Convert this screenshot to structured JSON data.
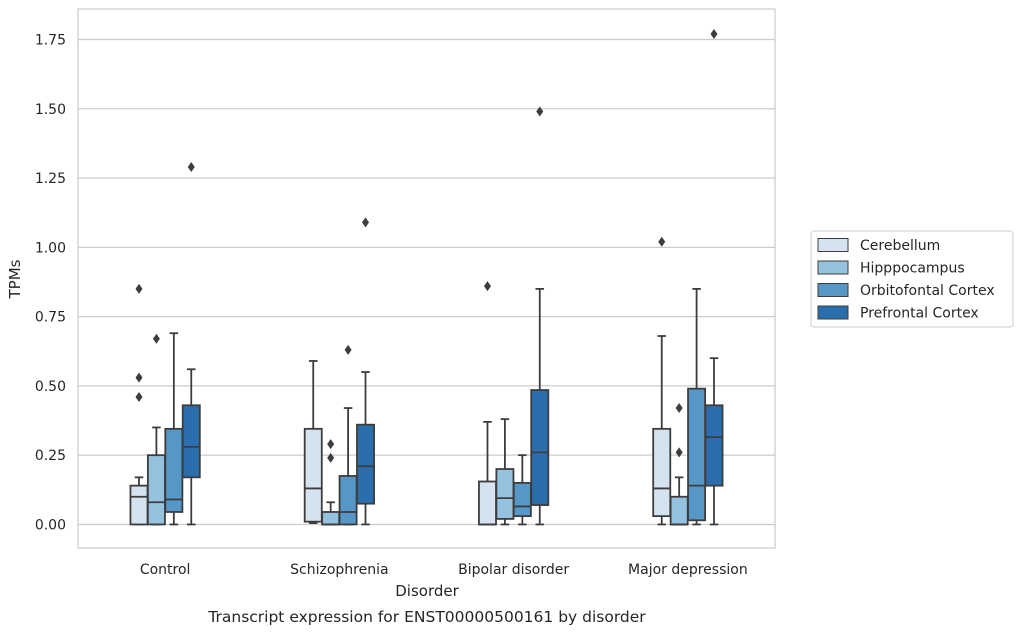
{
  "chart_data": {
    "type": "boxplot",
    "title": "Transcript expression for ENST00000500161 by disorder",
    "xlabel": "Disorder",
    "ylabel": "TPMs",
    "ylim": [
      -0.085,
      1.86
    ],
    "yticks": [
      0.0,
      0.25,
      0.5,
      0.75,
      1.0,
      1.25,
      1.5,
      1.75
    ],
    "ytick_labels": [
      "0.00",
      "0.25",
      "0.50",
      "0.75",
      "1.00",
      "1.25",
      "1.50",
      "1.75"
    ],
    "grid": true,
    "legend_position": "right",
    "categories": [
      "Control",
      "Schizophrenia",
      "Bipolar disorder",
      "Major depression"
    ],
    "series": [
      {
        "name": "Cerebellum",
        "color": "#d5e3f1",
        "boxes": [
          {
            "whislo": 0.0,
            "q1": 0.0,
            "med": 0.1,
            "q3": 0.14,
            "whishi": 0.17,
            "fliers": [
              0.46,
              0.53,
              0.85
            ]
          },
          {
            "whislo": 0.005,
            "q1": 0.01,
            "med": 0.13,
            "q3": 0.345,
            "whishi": 0.59,
            "fliers": []
          },
          {
            "whislo": 0.0,
            "q1": 0.0,
            "med": 0.0,
            "q3": 0.155,
            "whishi": 0.37,
            "fliers": [
              0.86
            ]
          },
          {
            "whislo": 0.0,
            "q1": 0.03,
            "med": 0.13,
            "q3": 0.345,
            "whishi": 0.68,
            "fliers": [
              1.02
            ]
          }
        ]
      },
      {
        "name": "Hipppocampus",
        "color": "#94c2df",
        "boxes": [
          {
            "whislo": 0.0,
            "q1": 0.0,
            "med": 0.08,
            "q3": 0.25,
            "whishi": 0.35,
            "fliers": [
              0.67
            ]
          },
          {
            "whislo": 0.0,
            "q1": 0.0,
            "med": 0.0,
            "q3": 0.045,
            "whishi": 0.08,
            "fliers": [
              0.24,
              0.29
            ]
          },
          {
            "whislo": 0.0,
            "q1": 0.02,
            "med": 0.095,
            "q3": 0.2,
            "whishi": 0.38,
            "fliers": []
          },
          {
            "whislo": 0.0,
            "q1": 0.0,
            "med": 0.0,
            "q3": 0.1,
            "whishi": 0.17,
            "fliers": [
              0.26,
              0.42
            ]
          }
        ]
      },
      {
        "name": "Orbitofontal Cortex",
        "color": "#5597c6",
        "boxes": [
          {
            "whislo": 0.0,
            "q1": 0.045,
            "med": 0.09,
            "q3": 0.345,
            "whishi": 0.69,
            "fliers": []
          },
          {
            "whislo": 0.0,
            "q1": 0.0,
            "med": 0.045,
            "q3": 0.175,
            "whishi": 0.42,
            "fliers": [
              0.63
            ]
          },
          {
            "whislo": 0.0,
            "q1": 0.03,
            "med": 0.065,
            "q3": 0.15,
            "whishi": 0.25,
            "fliers": []
          },
          {
            "whislo": 0.0,
            "q1": 0.015,
            "med": 0.14,
            "q3": 0.49,
            "whishi": 0.85,
            "fliers": []
          }
        ]
      },
      {
        "name": "Prefrontal Cortex",
        "color": "#2a6ead",
        "boxes": [
          {
            "whislo": 0.0,
            "q1": 0.17,
            "med": 0.28,
            "q3": 0.43,
            "whishi": 0.56,
            "fliers": [
              1.29
            ]
          },
          {
            "whislo": 0.0,
            "q1": 0.075,
            "med": 0.21,
            "q3": 0.36,
            "whishi": 0.55,
            "fliers": [
              1.09
            ]
          },
          {
            "whislo": 0.0,
            "q1": 0.07,
            "med": 0.26,
            "q3": 0.485,
            "whishi": 0.85,
            "fliers": [
              1.49
            ]
          },
          {
            "whislo": 0.0,
            "q1": 0.14,
            "med": 0.315,
            "q3": 0.43,
            "whishi": 0.6,
            "fliers": [
              1.77
            ]
          }
        ]
      }
    ]
  }
}
